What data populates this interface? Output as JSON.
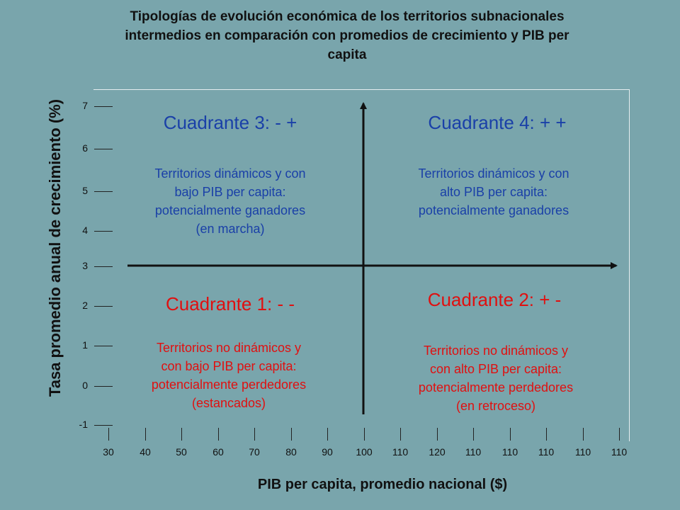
{
  "title": "Tipologías de evolución económica de los territorios subnacionales intermedios en comparación con promedios de crecimiento y PIB per capita",
  "title_lines": [
    "Tipologías de evolución económica de los territorios subnacionales",
    "intermedios en comparación con promedios de crecimiento y PIB per",
    "capita"
  ],
  "y_axis": {
    "label": "Tasa promedio anual de crecimiento (%)",
    "ticks": [
      "7",
      "6",
      "5",
      "4",
      "3",
      "2",
      "1",
      "0",
      "-1"
    ]
  },
  "x_axis": {
    "label": "PIB per capita, promedio nacional ($)",
    "ticks": [
      "30",
      "40",
      "50",
      "60",
      "70",
      "80",
      "90",
      "100",
      "110",
      "120",
      "110",
      "110",
      "110",
      "110",
      "110"
    ]
  },
  "quadrants": {
    "q3": {
      "title": "Cuadrante 3: - +",
      "desc": [
        "Territorios dinámicos y con",
        "bajo PIB per capita:",
        "potencialmente ganadores",
        "(en marcha)"
      ],
      "color": "#1a40a8"
    },
    "q4": {
      "title": "Cuadrante 4: + +",
      "desc": [
        "Territorios dinámicos y con",
        "alto PIB per capita:",
        "potencialmente ganadores"
      ],
      "color": "#1a40a8"
    },
    "q1": {
      "title": "Cuadrante 1: - -",
      "desc": [
        "Territorios no dinámicos y",
        "con bajo PIB per capita:",
        "potencialmente perdedores",
        "(estancados)"
      ],
      "color": "#e01010"
    },
    "q2": {
      "title": "Cuadrante 2: + -",
      "desc": [
        "Territorios no dinámicos y",
        "con alto PIB per capita:",
        "potencialmente perdedores",
        "(en retroceso)"
      ],
      "color": "#e01010"
    }
  }
}
